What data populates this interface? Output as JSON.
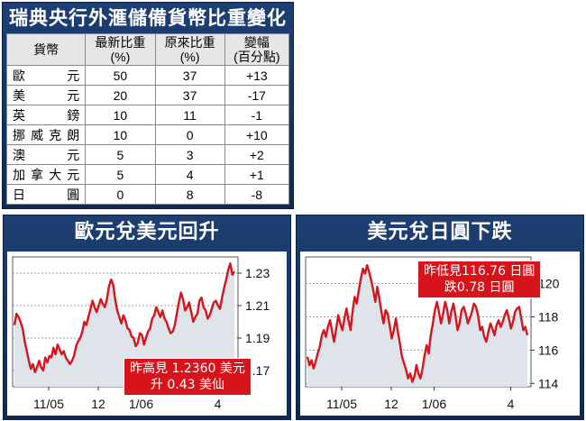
{
  "table": {
    "title": "瑞典央行外滙儲備貨幣比重變化",
    "headers": [
      {
        "l1": "貨幣",
        "l2": ""
      },
      {
        "l1": "最新比重",
        "l2": "(%)"
      },
      {
        "l1": "原來比重",
        "l2": "(%)"
      },
      {
        "l1": "變幅",
        "l2": "(百分點)"
      }
    ],
    "rows": [
      {
        "currency": "歐元",
        "latest": "50",
        "previous": "37",
        "change": "+13"
      },
      {
        "currency": "美元",
        "latest": "20",
        "previous": "37",
        "change": "-17"
      },
      {
        "currency": "英鎊",
        "latest": "10",
        "previous": "11",
        "change": "-1"
      },
      {
        "currency": "挪威克朗",
        "latest": "10",
        "previous": "0",
        "change": "+10"
      },
      {
        "currency": "澳元",
        "latest": "5",
        "previous": "3",
        "change": "+2"
      },
      {
        "currency": "加拿大元",
        "latest": "5",
        "previous": "4",
        "change": "+1"
      },
      {
        "currency": "日圓",
        "latest": "0",
        "previous": "8",
        "change": "-8"
      }
    ]
  },
  "chart_data": [
    {
      "type": "line",
      "title": "歐元兌美元回升",
      "x_ticks": [
        "11/05",
        "12",
        "1/06",
        "4"
      ],
      "y_ticks": [
        1.17,
        1.19,
        1.21,
        1.23
      ],
      "ylim": [
        1.16,
        1.24
      ],
      "y_axis_side": "right",
      "annotation": [
        "昨高見 1.2360 美元",
        "升 0.43 美仙"
      ],
      "series": [
        {
          "color": "#d7141b",
          "values": [
            1.198,
            1.205,
            1.203,
            1.2,
            1.196,
            1.188,
            1.182,
            1.176,
            1.171,
            1.174,
            1.169,
            1.172,
            1.176,
            1.172,
            1.17,
            1.178,
            1.175,
            1.179,
            1.178,
            1.184,
            1.18,
            1.186,
            1.183,
            1.18,
            1.182,
            1.178,
            1.176,
            1.174,
            1.176,
            1.179,
            1.185,
            1.188,
            1.19,
            1.194,
            1.2,
            1.198,
            1.203,
            1.208,
            1.213,
            1.209,
            1.206,
            1.21,
            1.214,
            1.211,
            1.209,
            1.214,
            1.222,
            1.226,
            1.223,
            1.214,
            1.207,
            1.203,
            1.199,
            1.204,
            1.201,
            1.196,
            1.195,
            1.191,
            1.19,
            1.185,
            1.187,
            1.193,
            1.192,
            1.186,
            1.19,
            1.194,
            1.196,
            1.202,
            1.204,
            1.209,
            1.206,
            1.203,
            1.207,
            1.202,
            1.2,
            1.196,
            1.193,
            1.194,
            1.198,
            1.205,
            1.212,
            1.218,
            1.214,
            1.207,
            1.209,
            1.212,
            1.206,
            1.2,
            1.203,
            1.205,
            1.213,
            1.215,
            1.209,
            1.207,
            1.202,
            1.204,
            1.208,
            1.212,
            1.213,
            1.21,
            1.208,
            1.215,
            1.221,
            1.226,
            1.232,
            1.236,
            1.229,
            1.231
          ]
        }
      ]
    },
    {
      "type": "line",
      "title": "美元兌日圓下跌",
      "x_ticks": [
        "11/05",
        "12",
        "1/06",
        "4"
      ],
      "y_ticks": [
        114,
        116,
        118,
        120
      ],
      "ylim": [
        113.8,
        121.6
      ],
      "y_axis_side": "right",
      "annotation": [
        "昨低見116.76 日圓",
        "跌0.78 日圓"
      ],
      "series": [
        {
          "color": "#d7141b",
          "values": [
            115.6,
            115.1,
            115.4,
            114.9,
            115.3,
            115.8,
            116.2,
            116.9,
            117.2,
            116.8,
            117.4,
            117.8,
            117.1,
            116.5,
            117.3,
            118.1,
            117.6,
            117.2,
            117.9,
            118.5,
            117.8,
            117.2,
            118.4,
            119.2,
            118.8,
            119.6,
            120.3,
            120.9,
            120.6,
            121.1,
            120.7,
            120.2,
            119.6,
            118.9,
            119.8,
            119.1,
            118.3,
            117.6,
            118.4,
            118.2,
            117.5,
            116.7,
            117.2,
            117.9,
            117.1,
            116.4,
            115.6,
            115.2,
            114.8,
            114.3,
            114.6,
            114.1,
            114.4,
            115.1,
            114.6,
            114.3,
            114.9,
            115.7,
            116.3,
            115.8,
            116.9,
            117.6,
            118.4,
            118.9,
            118.3,
            117.6,
            118.2,
            118.9,
            118.4,
            117.6,
            118.3,
            118.8,
            118.1,
            117.2,
            117.6,
            118.4,
            118.6,
            118.2,
            117.6,
            117.9,
            118.3,
            118.8,
            118.6,
            118.1,
            117.2,
            117.4,
            116.8,
            116.5,
            117.1,
            117.6,
            117.3,
            116.9,
            117.5,
            117.8,
            117.4,
            117.7,
            118.1,
            118.4,
            117.9,
            117.3,
            117.7,
            118.3,
            118.5,
            118.6,
            117.9,
            117.2,
            117.4,
            116.9
          ]
        }
      ]
    }
  ]
}
